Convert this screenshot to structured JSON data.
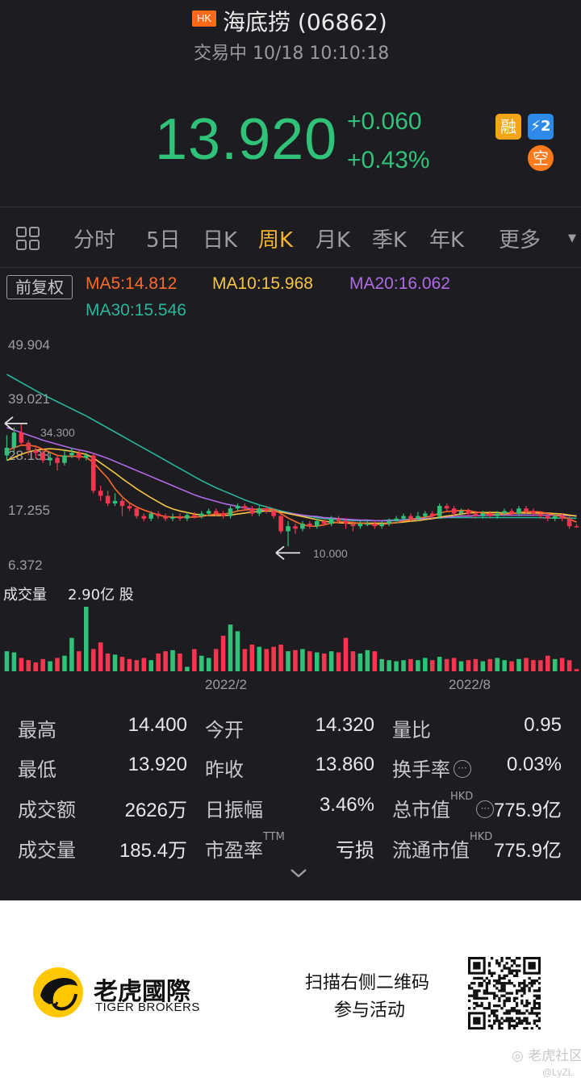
{
  "header": {
    "market_badge": "HK",
    "stock_title": "海底捞 (06862)",
    "status": "交易中 10/18 10:10:18",
    "price": "13.920",
    "change": "+0.060",
    "change_pct": "+0.43%",
    "badges": {
      "margin": "融",
      "level2": "⚡2",
      "short": "空"
    }
  },
  "tabs": [
    {
      "label": "分时"
    },
    {
      "label": "5日"
    },
    {
      "label": "日K"
    },
    {
      "label": "周K",
      "active": true
    },
    {
      "label": "月K"
    },
    {
      "label": "季K"
    },
    {
      "label": "年K"
    },
    {
      "label": "更多"
    }
  ],
  "ma": {
    "adjust_label": "前复权",
    "ma5": "MA5:14.812",
    "ma10": "MA10:15.968",
    "ma20": "MA20:16.062",
    "ma30": "MA30:15.546",
    "colors": {
      "ma5": "#ff6a2a",
      "ma10": "#f5c542",
      "ma20": "#b06ae6",
      "ma30": "#28b59a"
    }
  },
  "chart_data": {
    "type": "candlestick",
    "period": "周K",
    "price_ticks": [
      "49.904",
      "39.021",
      "28.138",
      "17.255",
      "6.372"
    ],
    "ylim": [
      6.372,
      49.904
    ],
    "max_marker": "34.300",
    "min_marker": "10.000",
    "volume_label": "成交量",
    "volume_value": "2.90亿 股",
    "x_ticks": [
      "2022/2",
      "2022/8"
    ],
    "up_color": "#2fc278",
    "down_color": "#f5364e",
    "candles": [
      [
        28.0,
        29.5,
        32.0,
        27.0
      ],
      [
        29.5,
        32.5,
        33.5,
        28.5
      ],
      [
        32.5,
        30.5,
        34.3,
        30.0
      ],
      [
        30.5,
        29.0,
        31.0,
        28.0
      ],
      [
        29.0,
        28.5,
        30.0,
        27.5
      ],
      [
        28.5,
        27.0,
        29.0,
        26.5
      ],
      [
        27.0,
        27.5,
        28.5,
        26.0
      ],
      [
        27.5,
        26.5,
        28.0,
        25.0
      ],
      [
        26.5,
        28.0,
        29.0,
        26.0
      ],
      [
        28.0,
        28.5,
        29.5,
        27.5
      ],
      [
        28.5,
        27.5,
        29.0,
        27.0
      ],
      [
        27.5,
        28.0,
        28.5,
        27.0
      ],
      [
        28.0,
        21.0,
        28.5,
        20.5
      ],
      [
        21.0,
        20.0,
        22.0,
        19.0
      ],
      [
        20.0,
        18.5,
        21.0,
        18.0
      ],
      [
        18.5,
        19.0,
        20.5,
        18.0
      ],
      [
        19.0,
        18.0,
        19.5,
        16.0
      ],
      [
        18.0,
        17.5,
        18.5,
        17.0
      ],
      [
        17.5,
        16.0,
        18.0,
        15.5
      ],
      [
        16.0,
        15.5,
        16.5,
        15.0
      ],
      [
        15.5,
        16.5,
        17.0,
        15.0
      ],
      [
        16.5,
        16.0,
        17.0,
        15.5
      ],
      [
        16.0,
        15.5,
        16.5,
        15.0
      ],
      [
        15.5,
        15.8,
        16.5,
        15.0
      ],
      [
        15.8,
        15.5,
        16.5,
        15.0
      ],
      [
        15.5,
        16.2,
        16.8,
        15.0
      ],
      [
        16.2,
        16.0,
        16.8,
        15.5
      ],
      [
        16.0,
        16.5,
        17.0,
        15.5
      ],
      [
        16.5,
        17.0,
        17.5,
        16.0
      ],
      [
        17.0,
        16.5,
        17.5,
        16.0
      ],
      [
        16.5,
        16.0,
        17.0,
        15.5
      ],
      [
        16.0,
        17.5,
        18.0,
        15.5
      ],
      [
        17.5,
        18.0,
        18.5,
        17.0
      ],
      [
        18.0,
        17.5,
        18.5,
        17.0
      ],
      [
        17.5,
        16.5,
        18.0,
        16.0
      ],
      [
        16.5,
        17.5,
        18.0,
        16.0
      ],
      [
        17.5,
        17.0,
        18.0,
        16.5
      ],
      [
        17.0,
        16.0,
        17.5,
        15.5
      ],
      [
        16.0,
        13.0,
        16.5,
        12.5
      ],
      [
        13.0,
        14.0,
        15.0,
        10.0
      ],
      [
        14.0,
        13.5,
        14.5,
        12.5
      ],
      [
        13.5,
        14.5,
        15.0,
        13.0
      ],
      [
        14.5,
        14.0,
        15.0,
        13.5
      ],
      [
        14.0,
        15.0,
        15.5,
        13.5
      ],
      [
        15.0,
        14.5,
        15.5,
        14.0
      ],
      [
        14.5,
        15.5,
        16.0,
        14.0
      ],
      [
        15.5,
        15.0,
        16.0,
        14.5
      ],
      [
        15.0,
        14.5,
        15.5,
        13.5
      ],
      [
        14.5,
        14.0,
        15.0,
        13.0
      ],
      [
        14.0,
        14.5,
        15.0,
        13.5
      ],
      [
        14.5,
        14.5,
        15.0,
        14.0
      ],
      [
        14.5,
        14.0,
        15.0,
        13.5
      ],
      [
        14.0,
        14.5,
        15.0,
        13.5
      ],
      [
        14.5,
        15.0,
        15.5,
        14.0
      ],
      [
        15.0,
        15.5,
        16.0,
        14.5
      ],
      [
        15.5,
        16.0,
        16.5,
        15.0
      ],
      [
        16.0,
        15.5,
        16.5,
        15.0
      ],
      [
        15.5,
        16.0,
        16.8,
        15.0
      ],
      [
        16.0,
        16.5,
        17.0,
        15.5
      ],
      [
        16.5,
        16.0,
        17.0,
        15.5
      ],
      [
        16.0,
        18.0,
        18.5,
        15.5
      ],
      [
        18.0,
        17.5,
        18.5,
        17.0
      ],
      [
        17.5,
        16.5,
        18.0,
        16.0
      ],
      [
        16.5,
        17.0,
        17.5,
        16.0
      ],
      [
        17.0,
        16.5,
        17.5,
        16.0
      ],
      [
        16.5,
        16.0,
        17.0,
        15.5
      ],
      [
        16.0,
        16.5,
        17.0,
        15.5
      ],
      [
        16.5,
        16.0,
        17.0,
        15.5
      ],
      [
        16.0,
        16.5,
        17.0,
        15.5
      ],
      [
        16.5,
        17.0,
        17.5,
        16.0
      ],
      [
        17.0,
        16.5,
        17.5,
        16.0
      ],
      [
        16.5,
        17.5,
        18.0,
        16.0
      ],
      [
        17.5,
        17.0,
        18.0,
        16.5
      ],
      [
        17.0,
        16.5,
        17.5,
        16.0
      ],
      [
        16.5,
        16.0,
        17.0,
        15.5
      ],
      [
        16.0,
        15.5,
        16.5,
        15.0
      ],
      [
        15.5,
        16.0,
        16.5,
        15.0
      ],
      [
        16.0,
        15.5,
        16.5,
        15.0
      ],
      [
        15.5,
        14.0,
        16.0,
        13.5
      ],
      [
        14.0,
        13.9,
        14.4,
        13.9
      ]
    ],
    "ma5": [
      29,
      29.5,
      30,
      30,
      29.8,
      29.2,
      28.6,
      28,
      27.8,
      27.8,
      27.8,
      27.6,
      26.6,
      25,
      23.5,
      21.4,
      19.8,
      18.6,
      17.8,
      17.2,
      16.7,
      16.2,
      15.9,
      15.8,
      15.8,
      15.8,
      15.8,
      15.9,
      16.2,
      16.4,
      16.4,
      16.6,
      17,
      17.2,
      17.3,
      17.4,
      17.4,
      17.3,
      16.5,
      15.6,
      14.9,
      14.3,
      14,
      14,
      14.3,
      14.6,
      14.8,
      14.9,
      14.7,
      14.6,
      14.5,
      14.3,
      14.4,
      14.5,
      14.7,
      15,
      15.3,
      15.6,
      15.8,
      16,
      16.6,
      16.9,
      17,
      17.1,
      17.1,
      16.8,
      16.6,
      16.4,
      16.3,
      16.4,
      16.5,
      16.7,
      16.9,
      16.9,
      16.8,
      16.5,
      16.2,
      15.9,
      15.4,
      14.8
    ],
    "ma10": [
      27,
      27.6,
      28.2,
      28.7,
      29,
      29.2,
      29.3,
      29.2,
      29,
      28.8,
      28.5,
      28.2,
      27.5,
      26.5,
      25.5,
      24.5,
      23.4,
      22.4,
      21.4,
      20.5,
      19.6,
      18.8,
      18,
      17.4,
      17,
      16.7,
      16.4,
      16.2,
      16.1,
      16.1,
      16.1,
      16.2,
      16.4,
      16.6,
      16.8,
      16.9,
      17,
      17,
      16.8,
      16.5,
      16.2,
      15.9,
      15.6,
      15.3,
      15,
      14.8,
      14.7,
      14.6,
      14.6,
      14.6,
      14.6,
      14.6,
      14.6,
      14.6,
      14.7,
      14.8,
      15,
      15.1,
      15.3,
      15.5,
      15.8,
      16,
      16.2,
      16.4,
      16.6,
      16.7,
      16.7,
      16.7,
      16.7,
      16.6,
      16.6,
      16.6,
      16.6,
      16.6,
      16.6,
      16.6,
      16.5,
      16.4,
      16.2,
      15.97
    ],
    "ma20": [
      33.5,
      33,
      32.5,
      32,
      31.5,
      31,
      30.6,
      30.2,
      29.8,
      29.4,
      29.1,
      28.8,
      28.4,
      27.9,
      27.4,
      26.8,
      26.2,
      25.6,
      25,
      24.4,
      23.8,
      23.2,
      22.6,
      22,
      21.4,
      20.8,
      20.2,
      19.7,
      19.3,
      18.9,
      18.5,
      18.2,
      17.9,
      17.6,
      17.4,
      17.2,
      17,
      16.9,
      16.8,
      16.6,
      16.4,
      16.2,
      16,
      15.9,
      15.7,
      15.6,
      15.5,
      15.4,
      15.3,
      15.2,
      15.2,
      15.1,
      15.1,
      15.1,
      15.1,
      15.2,
      15.3,
      15.4,
      15.5,
      15.6,
      15.7,
      15.8,
      15.9,
      16,
      16,
      16.1,
      16.1,
      16.2,
      16.2,
      16.2,
      16.2,
      16.2,
      16.2,
      16.2,
      16.2,
      16.2,
      16.2,
      16.1,
      16.1,
      16.06
    ],
    "ma30": [
      44,
      43.2,
      42.4,
      41.6,
      40.8,
      40,
      39.3,
      38.6,
      37.9,
      37.2,
      36.5,
      35.8,
      35,
      34.2,
      33.4,
      32.6,
      31.8,
      31,
      30.2,
      29.4,
      28.6,
      27.8,
      27,
      26.2,
      25.4,
      24.6,
      23.8,
      23,
      22.3,
      21.6,
      21,
      20.4,
      19.8,
      19.2,
      18.7,
      18.2,
      17.8,
      17.4,
      17,
      16.7,
      16.4,
      16.1,
      15.9,
      15.7,
      15.5,
      15.4,
      15.3,
      15.2,
      15.1,
      15.1,
      15.1,
      15.1,
      15.1,
      15.2,
      15.2,
      15.3,
      15.4,
      15.5,
      15.5,
      15.6,
      15.6,
      15.7,
      15.7,
      15.7,
      15.7,
      15.7,
      15.7,
      15.7,
      15.7,
      15.7,
      15.7,
      15.7,
      15.7,
      15.7,
      15.7,
      15.6,
      15.6,
      15.6,
      15.6,
      15.55
    ],
    "volumes": [
      0.9,
      0.85,
      0.6,
      0.5,
      0.4,
      0.55,
      0.45,
      0.6,
      0.7,
      1.5,
      0.9,
      2.9,
      1.0,
      1.3,
      0.8,
      0.75,
      0.65,
      0.55,
      0.5,
      0.6,
      0.5,
      0.8,
      0.9,
      0.95,
      0.8,
      0.2,
      1.0,
      0.7,
      0.6,
      1.0,
      1.6,
      2.1,
      1.8,
      1.0,
      1.2,
      1.1,
      1.0,
      1.1,
      1.2,
      0.9,
      0.95,
      1.0,
      0.9,
      0.85,
      0.8,
      0.9,
      0.85,
      1.5,
      0.9,
      0.8,
      0.95,
      0.9,
      0.55,
      0.5,
      0.45,
      0.5,
      0.55,
      0.5,
      0.6,
      0.5,
      0.65,
      0.55,
      0.6,
      0.45,
      0.5,
      0.55,
      0.45,
      0.55,
      0.6,
      0.5,
      0.45,
      0.55,
      0.6,
      0.5,
      0.5,
      0.7,
      0.55,
      0.6,
      0.5,
      0.1
    ],
    "volume_max": 2.9
  },
  "stats": [
    [
      {
        "label": "最高",
        "value": "14.400"
      },
      {
        "label": "今开",
        "value": "14.320"
      },
      {
        "label": "量比",
        "value": "0.95"
      }
    ],
    [
      {
        "label": "最低",
        "value": "13.920"
      },
      {
        "label": "昨收",
        "value": "13.860"
      },
      {
        "label": "换手率",
        "value": "0.03%",
        "info": "···"
      }
    ],
    [
      {
        "label": "成交额",
        "value": "2626万"
      },
      {
        "label": "日振幅",
        "value": "3.46%"
      },
      {
        "label": "总市值",
        "sup": "HKD",
        "value": "775.9亿",
        "info": "···"
      }
    ],
    [
      {
        "label": "成交量",
        "value": "185.4万"
      },
      {
        "label": "市盈率",
        "sup": "TTM",
        "value": "亏损"
      },
      {
        "label": "流通市值",
        "sup": "HKD",
        "value": "775.9亿"
      }
    ]
  ],
  "footer": {
    "brand_cn": "老虎國際",
    "brand_en": "TIGER BROKERS",
    "scan_line1": "扫描右侧二维码",
    "scan_line2": "参与活动",
    "watermark_community": "老虎社区",
    "watermark_user": "@LyZL"
  }
}
